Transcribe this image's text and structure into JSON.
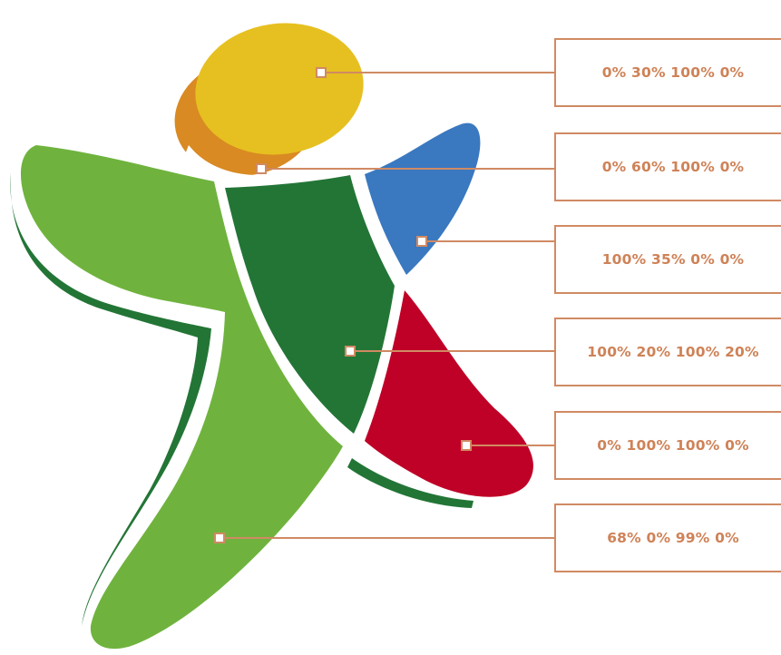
{
  "figure": {
    "colors": {
      "yellow": "#e6c020",
      "orange": "#d98a22",
      "light_green": "#6fb33e",
      "dark_green": "#237536",
      "blue": "#3a78c0",
      "red": "#bf0027",
      "annotation": "#d08a63"
    },
    "callouts": [
      {
        "part": "head",
        "value": "0% 30% 100% 0%"
      },
      {
        "part": "head-rim",
        "value": "0% 60% 100% 0%"
      },
      {
        "part": "right-arm",
        "value": "100% 35% 0% 0%"
      },
      {
        "part": "torso",
        "value": "100% 20% 100% 20%"
      },
      {
        "part": "right-leg",
        "value": "0% 100% 100% 0%"
      },
      {
        "part": "left-body",
        "value": "68% 0% 99% 0%"
      }
    ]
  }
}
